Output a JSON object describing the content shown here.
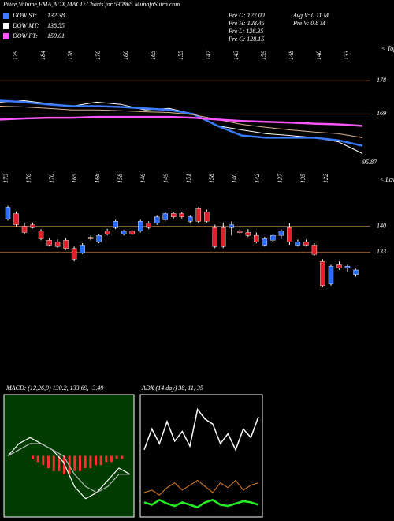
{
  "header": {
    "title": "Price,Volume,EMA,ADX,MACD Charts for 530965 MunafaSutra.com"
  },
  "legend": [
    {
      "name": "DOW ST:",
      "value": "132.38",
      "color": "#3a7bff"
    },
    {
      "name": "DOW MT:",
      "value": "138.55",
      "color": "#ffffff"
    },
    {
      "name": "DOW PT:",
      "value": "150.01",
      "color": "#ff55ff"
    }
  ],
  "stats": [
    "Pre  O: 127.00",
    "Pre  H: 128.45",
    "Pre  L: 126.35",
    "Pre  C: 128.15",
    "Avg V: 0.11 M",
    "Pre  V: 0.8  M"
  ],
  "tops": {
    "label": "< Tops",
    "values": [
      179,
      184,
      178,
      170,
      180,
      165,
      155,
      147,
      143,
      159,
      148,
      140,
      133
    ]
  },
  "lows": {
    "label": "< Lows",
    "values": [
      173,
      176,
      170,
      165,
      168,
      158,
      146,
      149,
      151,
      158,
      140,
      142,
      137,
      135,
      122
    ]
  },
  "ema_panel": {
    "ylim": [
      155,
      187
    ],
    "yticks": [
      178,
      169
    ],
    "last_label": "95.87",
    "series": [
      {
        "name": "price",
        "color": "#ffffff",
        "values": [
          172.2,
          172.6,
          171.8,
          171.1,
          172.2,
          171.6,
          170.1,
          170.5,
          169,
          165.8,
          164.7,
          163.7,
          163.2,
          162.6,
          161.5,
          158.3
        ]
      },
      {
        "name": "ST",
        "color": "#3a7bff",
        "values": [
          172.6,
          172.2,
          171.6,
          171.1,
          171.1,
          170.9,
          170.5,
          170.1,
          169,
          165.8,
          163.2,
          162.6,
          162.6,
          162.6,
          161.9,
          160.4
        ]
      },
      {
        "name": "MT",
        "color": "#d9b38c",
        "values": [
          171.1,
          170.9,
          170.5,
          170.1,
          170.1,
          169.9,
          169.6,
          169.4,
          168.8,
          167.5,
          166.2,
          165.4,
          164.7,
          164.1,
          163.7,
          162.6
        ]
      },
      {
        "name": "PT",
        "color": "#ff55ff",
        "values": [
          167.5,
          167.8,
          168,
          168,
          168.2,
          168.2,
          168.2,
          168.2,
          168,
          167.5,
          167.1,
          166.9,
          166.7,
          166.4,
          166.2,
          165.8
        ]
      }
    ]
  },
  "candle_panel": {
    "ylim": [
      118,
      152
    ],
    "yticks": [
      140,
      133
    ],
    "candles": [
      [
        141.9,
        145.5,
        141.5,
        145.1
      ],
      [
        143.4,
        144,
        140,
        140.4
      ],
      [
        140,
        141,
        137.9,
        138.3
      ],
      [
        140.4,
        141,
        139.4,
        139.6
      ],
      [
        138.7,
        139.2,
        136.2,
        136.6
      ],
      [
        136.2,
        136.8,
        134.5,
        134.9
      ],
      [
        135.8,
        136.4,
        134.2,
        134.5
      ],
      [
        136.2,
        136.8,
        133.6,
        134
      ],
      [
        134,
        134.5,
        130.5,
        131.1
      ],
      [
        132.8,
        135.4,
        132.5,
        134.9
      ],
      [
        137,
        137.5,
        136.2,
        136.6
      ],
      [
        135.8,
        138,
        135.4,
        137.5
      ],
      [
        138.7,
        139.3,
        137.5,
        137.9
      ],
      [
        139.6,
        141.7,
        139.2,
        141.3
      ],
      [
        137.9,
        139,
        137.5,
        138.7
      ],
      [
        138.7,
        139,
        137.5,
        137.9
      ],
      [
        138.7,
        141.7,
        138.3,
        141.3
      ],
      [
        140.8,
        141.3,
        139.2,
        139.6
      ],
      [
        140.8,
        143,
        140.4,
        142.5
      ],
      [
        141.7,
        143.8,
        141.3,
        143.4
      ],
      [
        143.4,
        143.8,
        142.1,
        142.5
      ],
      [
        143.4,
        143.8,
        142.1,
        142.5
      ],
      [
        141.3,
        143,
        140.8,
        142.5
      ],
      [
        144.7,
        145.1,
        140.8,
        141.3
      ],
      [
        143.8,
        144.5,
        140.9,
        141.3
      ],
      [
        139.6,
        140.4,
        134.1,
        134.5
      ],
      [
        139.6,
        141,
        134.1,
        134.5
      ],
      [
        139.6,
        141.3,
        137.5,
        140.4
      ],
      [
        138.7,
        139.2,
        138,
        138.3
      ],
      [
        138.3,
        139.2,
        137.1,
        137.5
      ],
      [
        137.5,
        138.3,
        135.4,
        135.8
      ],
      [
        134.9,
        137.1,
        134.5,
        136.6
      ],
      [
        136.2,
        137.9,
        135.8,
        137.5
      ],
      [
        137.5,
        139.2,
        136.6,
        138.7
      ],
      [
        139.6,
        140.8,
        135,
        135.8
      ],
      [
        134.9,
        136.4,
        134.5,
        135.8
      ],
      [
        135.8,
        136.4,
        134.5,
        134.9
      ],
      [
        134.9,
        135.4,
        132.1,
        132.4
      ],
      [
        130.5,
        131.1,
        123.6,
        124
      ],
      [
        124.4,
        129.6,
        124,
        129.2
      ],
      [
        129.6,
        130.5,
        128.3,
        128.7
      ],
      [
        128.7,
        129.6,
        127.8,
        129.2
      ],
      [
        127,
        128.5,
        126.4,
        128.2
      ]
    ]
  },
  "macd": {
    "label": "MACD: (12,26,9) 130.2, 133.69, -3.49",
    "ylim": [
      -10,
      10
    ],
    "macd": [
      0,
      2,
      3,
      2,
      1,
      -1,
      -5,
      -7,
      -6,
      -4,
      -2,
      -3
    ],
    "signal": [
      0,
      1,
      2,
      2,
      1,
      0,
      -3,
      -5,
      -6,
      -5,
      -3,
      -3
    ],
    "histogram": [
      -0.5,
      -1,
      -1.5,
      -2,
      -2.5,
      -2.5,
      -3,
      -3,
      -2.5,
      -2.5,
      -2,
      -2,
      -1.5,
      -1.5,
      -1,
      -1,
      -0.5,
      -0.5
    ]
  },
  "adx": {
    "label": "ADX (14 day) 38, 11, 35",
    "ylim": [
      0,
      100
    ],
    "dx": [
      55,
      72,
      60,
      78,
      62,
      70,
      58,
      88,
      80,
      76,
      60,
      68,
      55,
      72,
      65,
      82
    ],
    "plus": [
      12,
      10,
      14,
      11,
      9,
      12,
      10,
      8,
      12,
      14,
      10,
      9,
      11,
      13,
      12,
      10
    ],
    "minus": [
      20,
      22,
      18,
      24,
      28,
      22,
      26,
      30,
      25,
      20,
      28,
      24,
      30,
      22,
      26,
      28
    ]
  }
}
